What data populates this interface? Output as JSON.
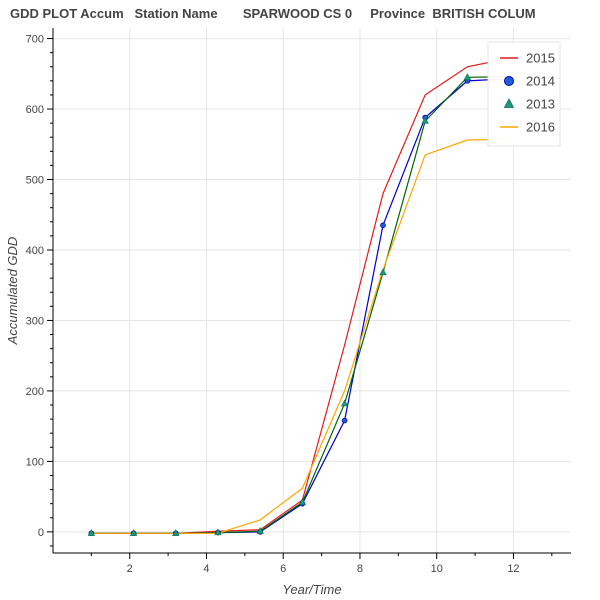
{
  "chart_data": {
    "type": "line",
    "title": "GDD PLOT Accum   Station Name       SPARWOOD CS 0     Province  BRITISH COLUM",
    "xlabel": "Year/Time",
    "ylabel": "Accumulated GDD",
    "xlim": [
      0,
      13.5
    ],
    "ylim": [
      -30,
      715
    ],
    "x_ticks": [
      2,
      4,
      6,
      8,
      10,
      12
    ],
    "y_ticks": [
      0,
      100,
      200,
      300,
      400,
      500,
      600,
      700
    ],
    "grid": true,
    "legend_position": "top-right",
    "series": [
      {
        "name": "2015",
        "color": "#e31a1c",
        "marker": "none",
        "x": [
          1.0,
          2.1,
          3.2,
          4.3,
          5.4,
          6.5,
          7.6,
          8.6,
          9.7,
          10.8,
          11.9
        ],
        "y": [
          -2,
          -2,
          -2,
          1,
          3,
          45,
          265,
          480,
          620,
          660,
          672
        ]
      },
      {
        "name": "2014",
        "color": "#0000cc",
        "marker": "circle",
        "x": [
          1.0,
          2.1,
          3.2,
          4.3,
          5.4,
          6.5,
          7.6,
          8.6,
          9.7,
          10.8,
          11.9
        ],
        "y": [
          -2,
          -2,
          -2,
          -1,
          0,
          40,
          158,
          435,
          588,
          640,
          643
        ]
      },
      {
        "name": "2013",
        "color": "#006400",
        "marker": "triangle",
        "x": [
          1.0,
          2.1,
          3.2,
          4.3,
          5.4,
          6.5,
          7.6,
          8.6,
          9.7,
          10.8,
          11.9
        ],
        "y": [
          -2,
          -2,
          -2,
          -1,
          1,
          42,
          182,
          368,
          583,
          645,
          646
        ]
      },
      {
        "name": "2016",
        "color": "#ffa500",
        "marker": "none",
        "x": [
          1.0,
          2.1,
          3.2,
          4.3,
          5.4,
          6.5,
          7.6,
          8.6,
          9.7,
          10.8,
          11.9
        ],
        "y": [
          -2,
          -2,
          -2,
          -2,
          17,
          62,
          200,
          372,
          535,
          556,
          557
        ]
      }
    ],
    "legend_order": [
      "2015",
      "2014",
      "2013",
      "2016"
    ]
  }
}
